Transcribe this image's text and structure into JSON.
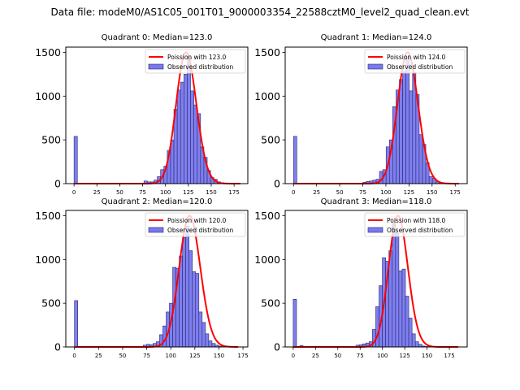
{
  "suptitle": "Data file: modeM0/AS1C05_001T01_9000003354_22588cztM0_level2_quad_clean.evt",
  "colors": {
    "bar_fill": "#7878f0",
    "bar_edge": "#2a2a6a",
    "curve": "#ff0000"
  },
  "chart_data": [
    {
      "type": "bar",
      "title": "Quadrant 0: Median=123.0",
      "xlim": [
        -9,
        190
      ],
      "ylim": [
        0,
        1560
      ],
      "xticks": [
        0,
        25,
        50,
        75,
        100,
        125,
        150,
        175
      ],
      "yticks": [
        0,
        500,
        1000,
        1500
      ],
      "bin_start": 0,
      "bin_width": 3.64,
      "values": [
        540,
        0,
        0,
        0,
        0,
        0,
        0,
        0,
        0,
        0,
        0,
        0,
        0,
        0,
        0,
        0,
        0,
        0,
        0,
        0,
        0,
        30,
        20,
        20,
        40,
        80,
        160,
        200,
        380,
        500,
        850,
        1070,
        1160,
        1250,
        1440,
        1060,
        900,
        800,
        420,
        300,
        150,
        70,
        50,
        20,
        10,
        5,
        2,
        0,
        0,
        0
      ],
      "poisson_mean": 123.0,
      "legend": [
        "Poission with 123.0",
        "Observed distribution"
      ]
    },
    {
      "type": "bar",
      "title": "Quadrant 1: Median=124.0",
      "xlim": [
        -9,
        188
      ],
      "ylim": [
        0,
        1560
      ],
      "xticks": [
        0,
        25,
        50,
        75,
        100,
        125,
        150,
        175
      ],
      "yticks": [
        0,
        500,
        1000,
        1500
      ],
      "bin_start": 0,
      "bin_width": 3.58,
      "values": [
        540,
        0,
        0,
        0,
        0,
        0,
        0,
        0,
        0,
        0,
        0,
        0,
        0,
        0,
        0,
        0,
        0,
        0,
        0,
        0,
        0,
        15,
        25,
        30,
        40,
        50,
        140,
        160,
        420,
        500,
        880,
        1070,
        1190,
        1280,
        1440,
        1060,
        1270,
        1020,
        560,
        450,
        240,
        80,
        60,
        20,
        10,
        3,
        0,
        0,
        0,
        0
      ],
      "poisson_mean": 124.0,
      "legend": [
        "Poission with 124.0",
        "Observed distribution"
      ]
    },
    {
      "type": "bar",
      "title": "Quadrant 2: Median=120.0",
      "xlim": [
        -9,
        180
      ],
      "ylim": [
        0,
        1560
      ],
      "xticks": [
        0,
        25,
        50,
        75,
        100,
        125,
        150,
        175
      ],
      "yticks": [
        0,
        500,
        1000,
        1500
      ],
      "bin_start": 0,
      "bin_width": 3.4,
      "values": [
        530,
        0,
        0,
        0,
        0,
        0,
        0,
        0,
        0,
        0,
        0,
        0,
        0,
        0,
        0,
        0,
        0,
        0,
        0,
        0,
        0,
        20,
        30,
        25,
        40,
        60,
        140,
        240,
        400,
        500,
        910,
        900,
        1040,
        1250,
        1380,
        1100,
        860,
        840,
        400,
        280,
        150,
        70,
        40,
        20,
        10,
        3,
        0,
        0,
        0,
        0
      ],
      "poisson_mean": 120.0,
      "legend": [
        "Poission with 120.0",
        "Observed distribution"
      ]
    },
    {
      "type": "bar",
      "title": "Quadrant 3: Median=118.0",
      "xlim": [
        -9,
        195
      ],
      "ylim": [
        0,
        1560
      ],
      "xticks": [
        0,
        25,
        50,
        75,
        100,
        125,
        150,
        175
      ],
      "yticks": [
        0,
        500,
        1000,
        1500
      ],
      "bin_start": 0,
      "bin_width": 3.7,
      "values": [
        545,
        0,
        15,
        5,
        0,
        0,
        0,
        0,
        0,
        0,
        0,
        0,
        0,
        0,
        0,
        0,
        0,
        0,
        0,
        20,
        25,
        35,
        45,
        60,
        200,
        460,
        700,
        1020,
        980,
        1100,
        1420,
        1300,
        870,
        890,
        580,
        330,
        150,
        60,
        30,
        10,
        5,
        2,
        0,
        0,
        0,
        0,
        0,
        0,
        0,
        0
      ],
      "poisson_mean": 118.0,
      "legend": [
        "Poission with 118.0",
        "Observed distribution"
      ]
    }
  ]
}
